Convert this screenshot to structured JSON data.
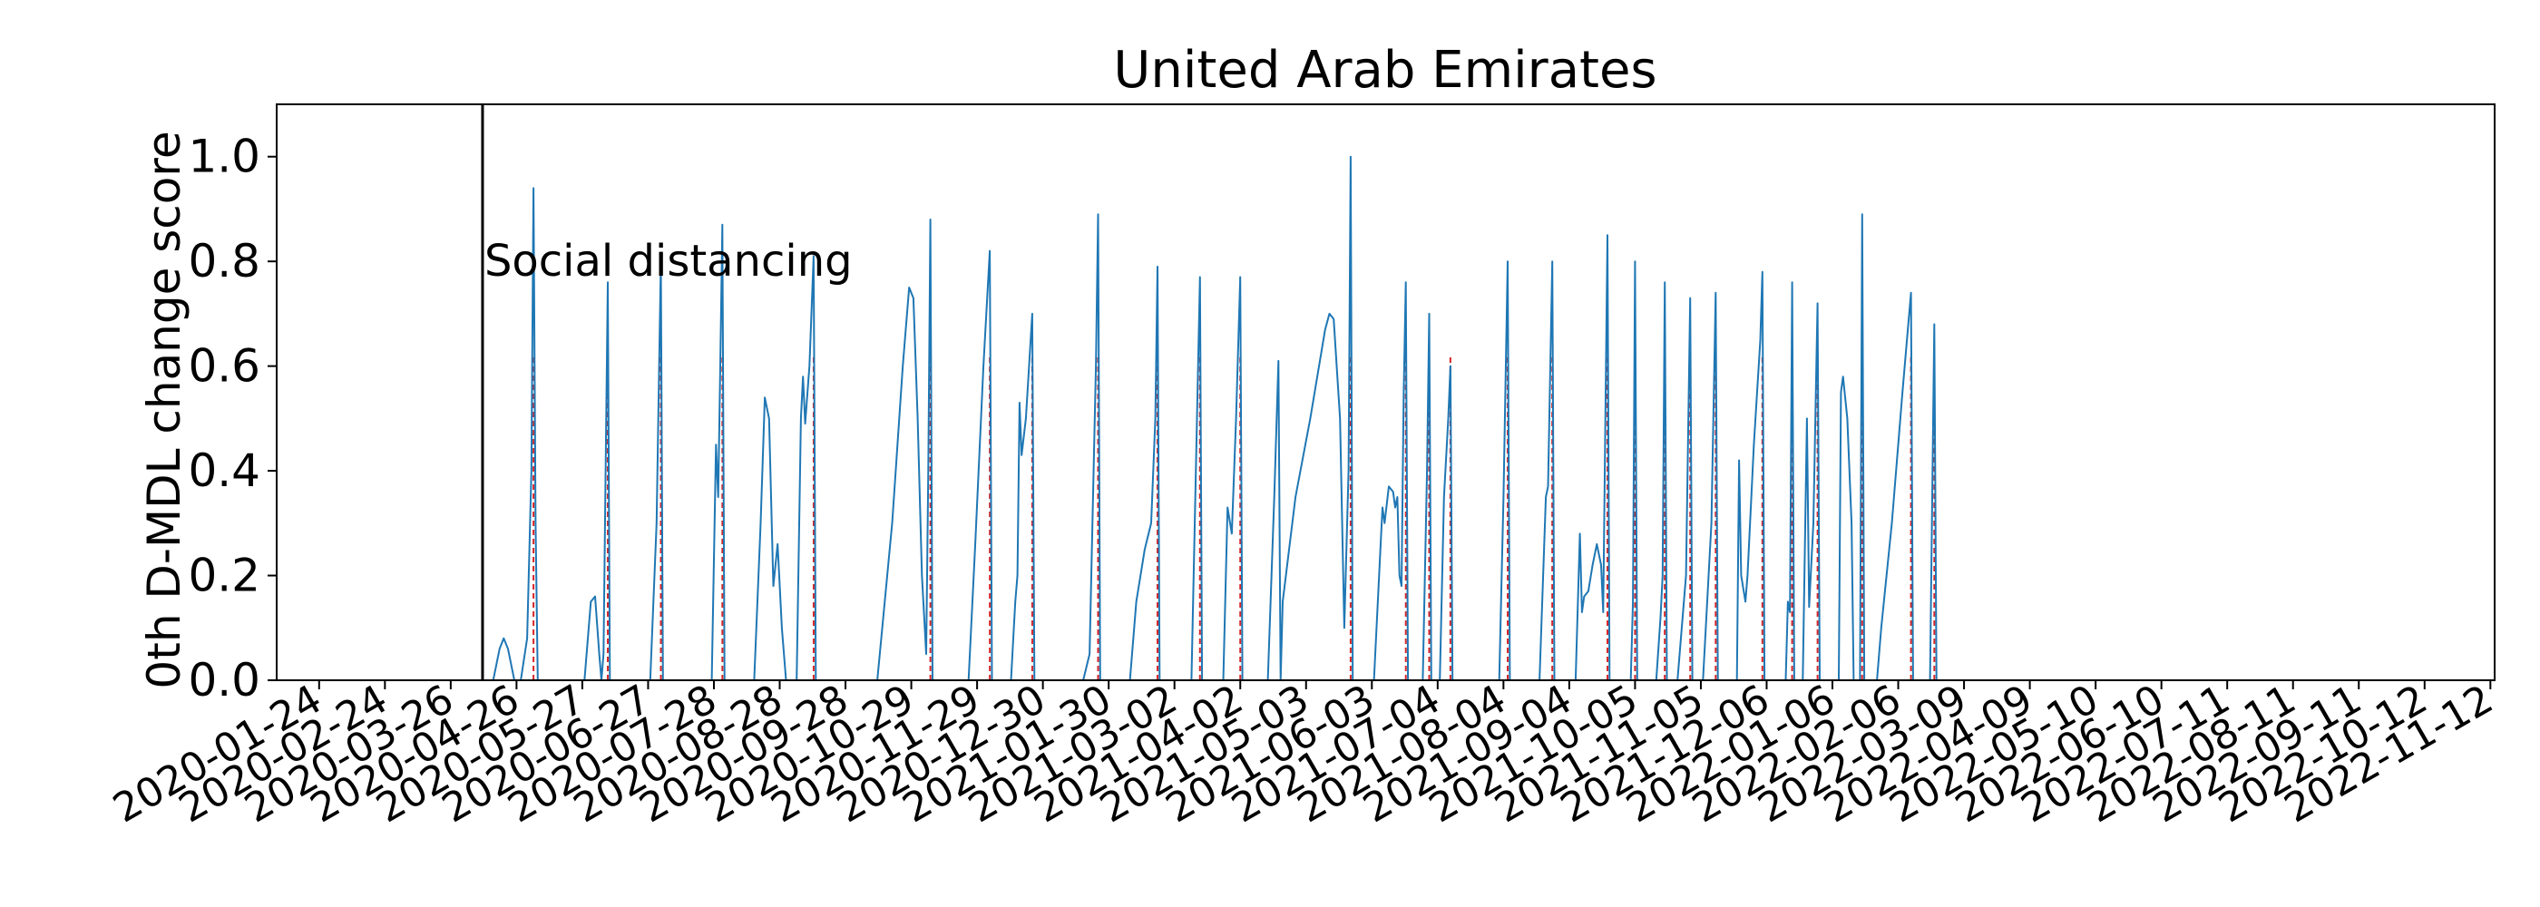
{
  "chart_data": {
    "type": "line",
    "title": "United Arab Emirates",
    "xlabel": "",
    "ylabel": "0th D-MDL change score",
    "x_type": "date",
    "xlim": [
      "2020-01-04",
      "2022-11-14"
    ],
    "ylim": [
      0,
      1.1
    ],
    "grid": false,
    "legend": "none",
    "x_ticks": [
      "2020-01-24",
      "2020-02-24",
      "2020-03-26",
      "2020-04-26",
      "2020-05-27",
      "2020-06-27",
      "2020-07-28",
      "2020-08-28",
      "2020-09-28",
      "2020-10-29",
      "2020-11-29",
      "2020-12-30",
      "2021-01-30",
      "2021-03-02",
      "2021-04-02",
      "2021-05-03",
      "2021-06-03",
      "2021-07-04",
      "2021-08-04",
      "2021-09-04",
      "2021-10-05",
      "2021-11-05",
      "2021-12-06",
      "2022-01-06",
      "2022-02-06",
      "2022-03-09",
      "2022-04-09",
      "2022-05-10",
      "2022-06-10",
      "2022-07-11",
      "2022-08-11",
      "2022-09-11",
      "2022-10-12",
      "2022-11-12"
    ],
    "y_ticks": [
      "0.0",
      "0.2",
      "0.4",
      "0.6",
      "0.8",
      "1.0"
    ],
    "y_tick_values": [
      0,
      0.2,
      0.4,
      0.6,
      0.8,
      1.0
    ],
    "event": {
      "date": "2020-04-10",
      "label": "Social distancing"
    },
    "colors": {
      "line": "#1f77b4",
      "alarm": "#d62728",
      "event": "#000000"
    },
    "series": [
      {
        "points": [
          [
            "2020-01-04",
            0
          ],
          [
            "2020-04-15",
            0
          ],
          [
            "2020-04-18",
            0.06
          ],
          [
            "2020-04-20",
            0.08
          ],
          [
            "2020-04-22",
            0.06
          ],
          [
            "2020-04-25",
            0
          ],
          [
            "2020-04-28",
            0
          ],
          [
            "2020-05-01",
            0.08
          ],
          [
            "2020-05-03",
            0.4
          ],
          [
            "2020-05-04",
            0.94
          ],
          [
            "2020-05-05",
            0.3
          ],
          [
            "2020-05-06",
            0
          ],
          [
            "2020-05-28",
            0
          ],
          [
            "2020-05-31",
            0.15
          ],
          [
            "2020-06-02",
            0.16
          ],
          [
            "2020-06-04",
            0.05
          ],
          [
            "2020-06-05",
            0
          ],
          [
            "2020-06-06",
            0.05
          ],
          [
            "2020-06-08",
            0.76
          ],
          [
            "2020-06-09",
            0
          ],
          [
            "2020-06-28",
            0
          ],
          [
            "2020-07-01",
            0.3
          ],
          [
            "2020-07-03",
            0.8
          ],
          [
            "2020-07-04",
            0
          ],
          [
            "2020-07-27",
            0
          ],
          [
            "2020-07-29",
            0.45
          ],
          [
            "2020-07-30",
            0.35
          ],
          [
            "2020-07-31",
            0.6
          ],
          [
            "2020-08-01",
            0.87
          ],
          [
            "2020-08-02",
            0
          ],
          [
            "2020-08-16",
            0
          ],
          [
            "2020-08-19",
            0.3
          ],
          [
            "2020-08-21",
            0.54
          ],
          [
            "2020-08-23",
            0.5
          ],
          [
            "2020-08-25",
            0.18
          ],
          [
            "2020-08-27",
            0.26
          ],
          [
            "2020-08-29",
            0.1
          ],
          [
            "2020-08-31",
            0
          ],
          [
            "2020-09-05",
            0
          ],
          [
            "2020-09-07",
            0.5
          ],
          [
            "2020-09-08",
            0.58
          ],
          [
            "2020-09-09",
            0.49
          ],
          [
            "2020-09-11",
            0.6
          ],
          [
            "2020-09-13",
            0.81
          ],
          [
            "2020-09-14",
            0
          ],
          [
            "2020-10-13",
            0
          ],
          [
            "2020-10-20",
            0.3
          ],
          [
            "2020-10-25",
            0.6
          ],
          [
            "2020-10-28",
            0.75
          ],
          [
            "2020-10-30",
            0.73
          ],
          [
            "2020-11-01",
            0.5
          ],
          [
            "2020-11-03",
            0.2
          ],
          [
            "2020-11-05",
            0.05
          ],
          [
            "2020-11-06",
            0.4
          ],
          [
            "2020-11-07",
            0.88
          ],
          [
            "2020-11-08",
            0
          ],
          [
            "2020-11-25",
            0
          ],
          [
            "2020-11-28",
            0.25
          ],
          [
            "2020-12-02",
            0.6
          ],
          [
            "2020-12-05",
            0.82
          ],
          [
            "2020-12-06",
            0
          ],
          [
            "2020-12-15",
            0
          ],
          [
            "2020-12-17",
            0.15
          ],
          [
            "2020-12-18",
            0.2
          ],
          [
            "2020-12-19",
            0.53
          ],
          [
            "2020-12-20",
            0.43
          ],
          [
            "2020-12-22",
            0.5
          ],
          [
            "2020-12-25",
            0.7
          ],
          [
            "2020-12-26",
            0
          ],
          [
            "2021-01-18",
            0
          ],
          [
            "2021-01-21",
            0.05
          ],
          [
            "2021-01-24",
            0.6
          ],
          [
            "2021-01-25",
            0.89
          ],
          [
            "2021-01-26",
            0
          ],
          [
            "2021-02-09",
            0
          ],
          [
            "2021-02-12",
            0.15
          ],
          [
            "2021-02-16",
            0.25
          ],
          [
            "2021-02-19",
            0.3
          ],
          [
            "2021-02-21",
            0.5
          ],
          [
            "2021-02-22",
            0.79
          ],
          [
            "2021-02-23",
            0
          ],
          [
            "2021-03-10",
            0
          ],
          [
            "2021-03-14",
            0.77
          ],
          [
            "2021-03-15",
            0
          ],
          [
            "2021-03-25",
            0
          ],
          [
            "2021-03-27",
            0.33
          ],
          [
            "2021-03-29",
            0.28
          ],
          [
            "2021-03-31",
            0.5
          ],
          [
            "2021-04-02",
            0.77
          ],
          [
            "2021-04-03",
            0
          ],
          [
            "2021-04-15",
            0
          ],
          [
            "2021-04-18",
            0.35
          ],
          [
            "2021-04-20",
            0.61
          ],
          [
            "2021-04-21",
            0
          ],
          [
            "2021-04-22",
            0.15
          ],
          [
            "2021-04-28",
            0.35
          ],
          [
            "2021-05-05",
            0.5
          ],
          [
            "2021-05-12",
            0.67
          ],
          [
            "2021-05-14",
            0.7
          ],
          [
            "2021-05-16",
            0.69
          ],
          [
            "2021-05-19",
            0.5
          ],
          [
            "2021-05-21",
            0.1
          ],
          [
            "2021-05-23",
            0.4
          ],
          [
            "2021-05-24",
            1.0
          ],
          [
            "2021-05-25",
            0
          ],
          [
            "2021-06-04",
            0
          ],
          [
            "2021-06-07",
            0.25
          ],
          [
            "2021-06-08",
            0.33
          ],
          [
            "2021-06-09",
            0.3
          ],
          [
            "2021-06-11",
            0.37
          ],
          [
            "2021-06-13",
            0.36
          ],
          [
            "2021-06-14",
            0.33
          ],
          [
            "2021-06-15",
            0.35
          ],
          [
            "2021-06-16",
            0.2
          ],
          [
            "2021-06-17",
            0.18
          ],
          [
            "2021-06-18",
            0.55
          ],
          [
            "2021-06-19",
            0.76
          ],
          [
            "2021-06-20",
            0
          ],
          [
            "2021-06-27",
            0
          ],
          [
            "2021-06-29",
            0.4
          ],
          [
            "2021-06-30",
            0.7
          ],
          [
            "2021-07-01",
            0
          ],
          [
            "2021-07-05",
            0
          ],
          [
            "2021-07-07",
            0.35
          ],
          [
            "2021-07-09",
            0.5
          ],
          [
            "2021-07-10",
            0.6
          ],
          [
            "2021-07-11",
            0
          ],
          [
            "2021-08-02",
            0
          ],
          [
            "2021-08-04",
            0.35
          ],
          [
            "2021-08-06",
            0.8
          ],
          [
            "2021-08-07",
            0
          ],
          [
            "2021-08-21",
            0
          ],
          [
            "2021-08-24",
            0.35
          ],
          [
            "2021-08-25",
            0.37
          ],
          [
            "2021-08-27",
            0.8
          ],
          [
            "2021-08-28",
            0
          ],
          [
            "2021-09-07",
            0
          ],
          [
            "2021-09-09",
            0.28
          ],
          [
            "2021-09-10",
            0.13
          ],
          [
            "2021-09-11",
            0.16
          ],
          [
            "2021-09-13",
            0.17
          ],
          [
            "2021-09-15",
            0.22
          ],
          [
            "2021-09-17",
            0.26
          ],
          [
            "2021-09-19",
            0.22
          ],
          [
            "2021-09-20",
            0.13
          ],
          [
            "2021-09-22",
            0.85
          ],
          [
            "2021-09-23",
            0
          ],
          [
            "2021-10-03",
            0
          ],
          [
            "2021-10-04",
            0.15
          ],
          [
            "2021-10-05",
            0.8
          ],
          [
            "2021-10-06",
            0
          ],
          [
            "2021-10-15",
            0
          ],
          [
            "2021-10-17",
            0.12
          ],
          [
            "2021-10-18",
            0.2
          ],
          [
            "2021-10-19",
            0.76
          ],
          [
            "2021-10-20",
            0
          ],
          [
            "2021-10-25",
            0
          ],
          [
            "2021-10-29",
            0.2
          ],
          [
            "2021-10-31",
            0.73
          ],
          [
            "2021-11-01",
            0
          ],
          [
            "2021-11-06",
            0
          ],
          [
            "2021-11-10",
            0.3
          ],
          [
            "2021-11-12",
            0.74
          ],
          [
            "2021-11-13",
            0
          ],
          [
            "2021-11-22",
            0
          ],
          [
            "2021-11-23",
            0.42
          ],
          [
            "2021-11-24",
            0.2
          ],
          [
            "2021-11-26",
            0.15
          ],
          [
            "2021-11-27",
            0.2
          ],
          [
            "2021-11-30",
            0.45
          ],
          [
            "2021-12-03",
            0.65
          ],
          [
            "2021-12-04",
            0.78
          ],
          [
            "2021-12-05",
            0
          ],
          [
            "2021-12-15",
            0
          ],
          [
            "2021-12-16",
            0.15
          ],
          [
            "2021-12-17",
            0.13
          ],
          [
            "2021-12-18",
            0.76
          ],
          [
            "2021-12-19",
            0
          ],
          [
            "2021-12-23",
            0
          ],
          [
            "2021-12-25",
            0.5
          ],
          [
            "2021-12-26",
            0.14
          ],
          [
            "2021-12-28",
            0.3
          ],
          [
            "2021-12-30",
            0.72
          ],
          [
            "2021-12-31",
            0
          ],
          [
            "2022-01-09",
            0
          ],
          [
            "2022-01-10",
            0.55
          ],
          [
            "2022-01-11",
            0.58
          ],
          [
            "2022-01-13",
            0.5
          ],
          [
            "2022-01-15",
            0.3
          ],
          [
            "2022-01-16",
            0
          ],
          [
            "2022-01-19",
            0
          ],
          [
            "2022-01-20",
            0.89
          ],
          [
            "2022-01-21",
            0
          ],
          [
            "2022-01-27",
            0
          ],
          [
            "2022-01-29",
            0.1
          ],
          [
            "2022-02-03",
            0.3
          ],
          [
            "2022-02-08",
            0.55
          ],
          [
            "2022-02-12",
            0.74
          ],
          [
            "2022-02-13",
            0
          ],
          [
            "2022-02-21",
            0
          ],
          [
            "2022-02-23",
            0.68
          ],
          [
            "2022-02-24",
            0
          ],
          [
            "2022-03-01",
            0
          ]
        ]
      }
    ],
    "alarms": [
      "2020-05-04",
      "2020-06-08",
      "2020-07-03",
      "2020-08-01",
      "2020-09-13",
      "2020-11-07",
      "2020-12-05",
      "2020-12-25",
      "2021-01-25",
      "2021-02-22",
      "2021-03-14",
      "2021-04-02",
      "2021-05-24",
      "2021-06-19",
      "2021-06-30",
      "2021-07-10",
      "2021-08-06",
      "2021-08-27",
      "2021-09-22",
      "2021-10-05",
      "2021-10-19",
      "2021-10-31",
      "2021-11-12",
      "2021-12-04",
      "2021-12-18",
      "2021-12-30",
      "2022-01-20",
      "2022-02-12",
      "2022-02-23"
    ]
  }
}
